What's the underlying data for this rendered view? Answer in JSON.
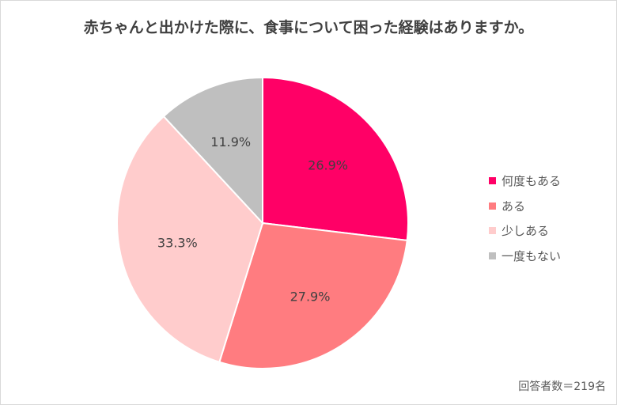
{
  "chart_data": {
    "type": "pie",
    "title": "赤ちゃんと出かけた際に、食事について困った経験はありますか。",
    "categories": [
      "何度もある",
      "ある",
      "少しある",
      "一度もない"
    ],
    "values": [
      26.9,
      27.9,
      33.3,
      11.9
    ],
    "labels": [
      "26.9%",
      "27.9%",
      "33.3%",
      "11.9%"
    ],
    "colors": [
      "#FF0066",
      "#FF7C80",
      "#FFCCCC",
      "#BFBFBF"
    ],
    "legend_position": "right",
    "note": "回答者数＝219名"
  }
}
